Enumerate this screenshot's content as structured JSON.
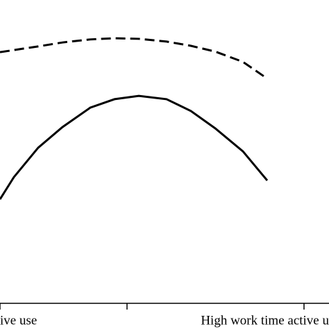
{
  "chart_data": {
    "type": "line",
    "xlim": [
      0,
      474
    ],
    "ylim": [
      0,
      100
    ],
    "xticks": [
      {
        "value": 0,
        "label": "ive use"
      },
      {
        "value": 183,
        "label": null
      },
      {
        "value": 438,
        "label": "High work time active u"
      }
    ],
    "x": [
      0,
      20,
      55,
      90,
      130,
      165,
      200,
      240,
      275,
      310,
      350,
      385
    ],
    "series": [
      {
        "color": "#000000",
        "dash": "dashed",
        "values": [
          82.8,
          83.5,
          84.7,
          86.0,
          87.0,
          87.4,
          87.2,
          86.3,
          84.9,
          83.0,
          79.6,
          74.1
        ]
      },
      {
        "color": "#000000",
        "dash": "solid",
        "values": [
          34.3,
          41.6,
          51.3,
          58.1,
          64.5,
          67.3,
          68.4,
          67.3,
          63.4,
          57.7,
          50.1,
          40.5
        ]
      }
    ]
  }
}
